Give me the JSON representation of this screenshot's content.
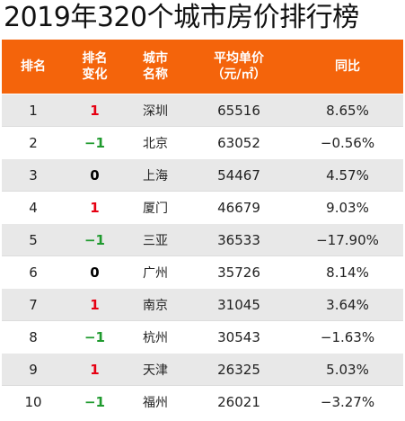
{
  "title": "2019年320个城市房价排行榜",
  "colors": {
    "header_bg": "#f4640b",
    "up": "#e60012",
    "down": "#1f9a2e",
    "flat": "#000000"
  },
  "columns": [
    {
      "lines": [
        "排名"
      ]
    },
    {
      "lines": [
        "排名",
        "变化"
      ]
    },
    {
      "lines": [
        "城市",
        "名称"
      ]
    },
    {
      "lines": [
        "平均单价",
        "（元/㎡）"
      ]
    },
    {
      "lines": [
        "同比"
      ]
    }
  ],
  "rows": [
    {
      "rank": "1",
      "change": "1",
      "trend": "up",
      "city": "深圳",
      "price": "65516",
      "yoy": "8.65%"
    },
    {
      "rank": "2",
      "change": "−1",
      "trend": "down",
      "city": "北京",
      "price": "63052",
      "yoy": "−0.56%"
    },
    {
      "rank": "3",
      "change": "0",
      "trend": "flat",
      "city": "上海",
      "price": "54467",
      "yoy": "4.57%"
    },
    {
      "rank": "4",
      "change": "1",
      "trend": "up",
      "city": "厦门",
      "price": "46679",
      "yoy": "9.03%"
    },
    {
      "rank": "5",
      "change": "−1",
      "trend": "down",
      "city": "三亚",
      "price": "36533",
      "yoy": "−17.90%"
    },
    {
      "rank": "6",
      "change": "0",
      "trend": "flat",
      "city": "广州",
      "price": "35726",
      "yoy": "8.14%"
    },
    {
      "rank": "7",
      "change": "1",
      "trend": "up",
      "city": "南京",
      "price": "31045",
      "yoy": "3.64%"
    },
    {
      "rank": "8",
      "change": "−1",
      "trend": "down",
      "city": "杭州",
      "price": "30543",
      "yoy": "−1.63%"
    },
    {
      "rank": "9",
      "change": "1",
      "trend": "up",
      "city": "天津",
      "price": "26325",
      "yoy": "5.03%"
    },
    {
      "rank": "10",
      "change": "−1",
      "trend": "down",
      "city": "福州",
      "price": "26021",
      "yoy": "−3.27%"
    }
  ]
}
